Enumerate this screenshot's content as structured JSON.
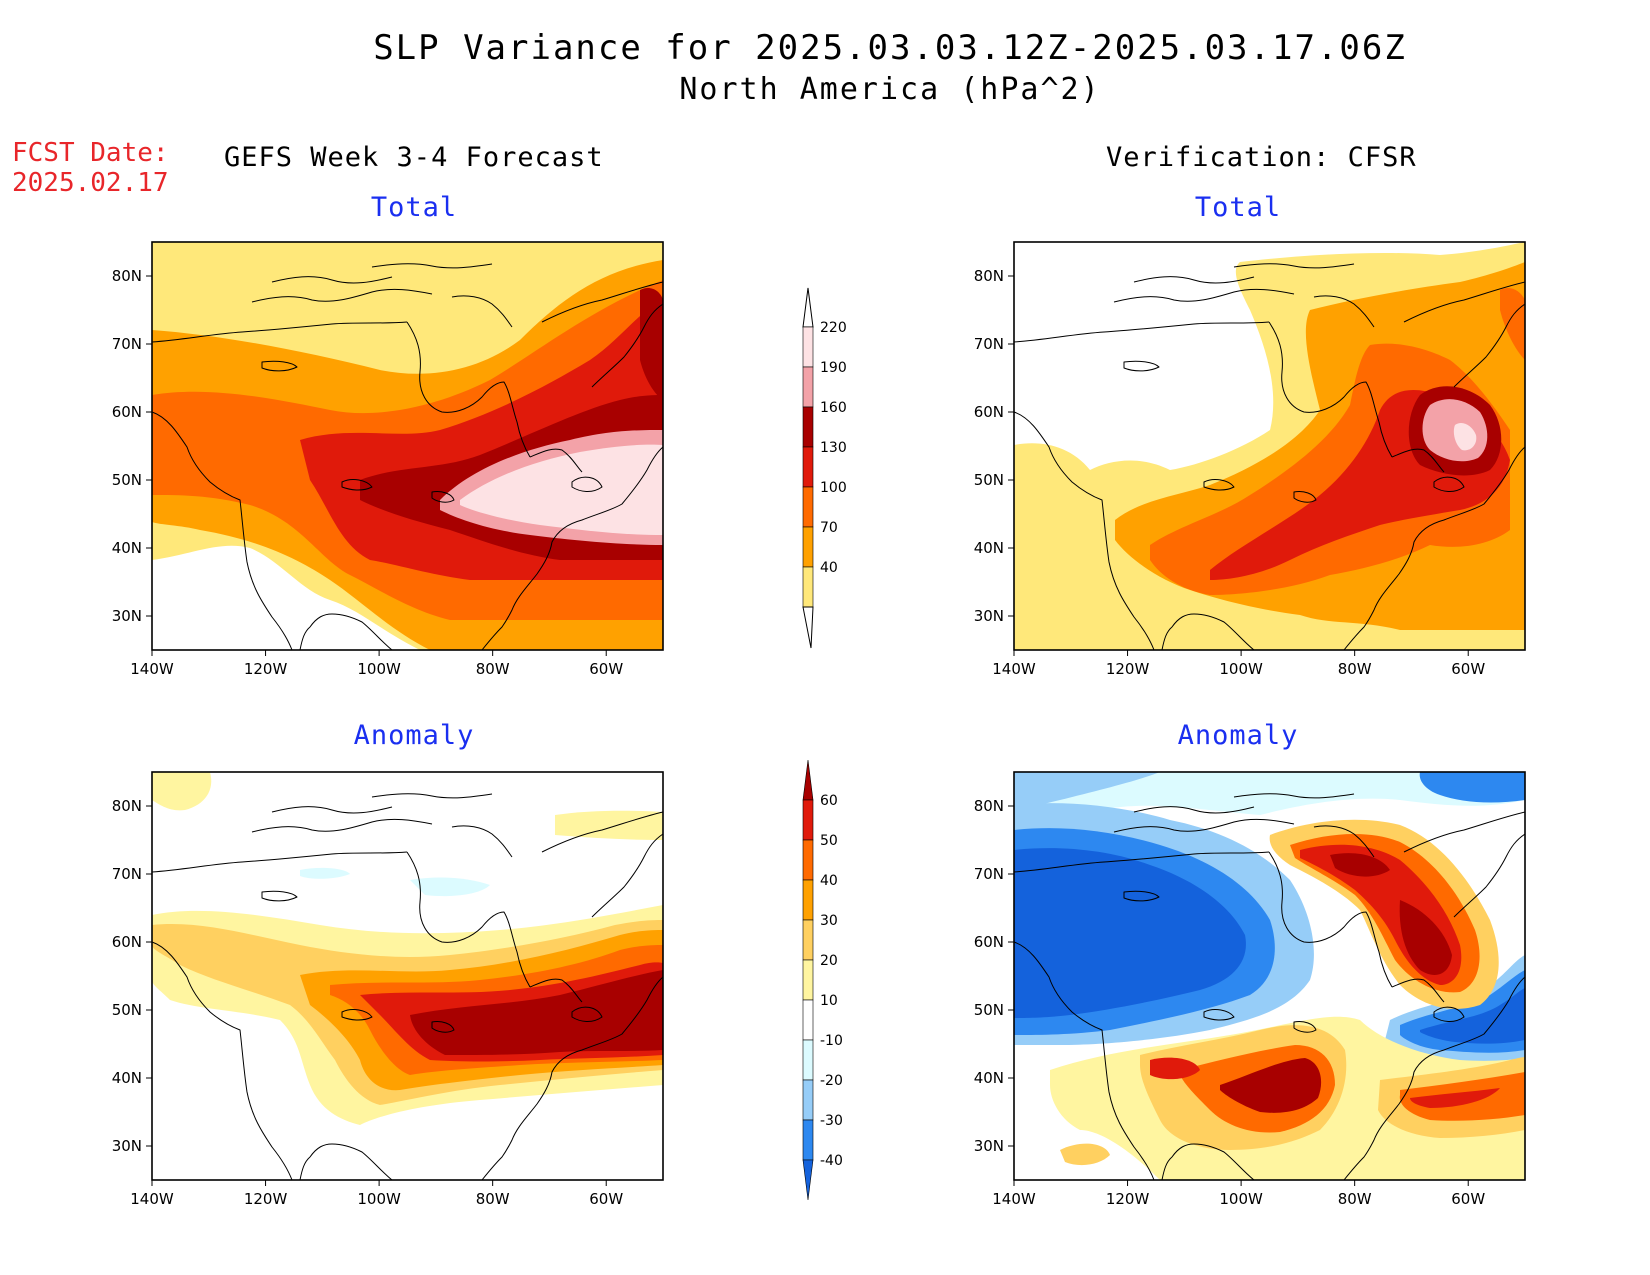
{
  "title": {
    "line1": "SLP Variance for 2025.03.03.12Z-2025.03.17.06Z",
    "line2": "North America (hPa^2)"
  },
  "forecast_date": {
    "label": "FCST Date:",
    "value": "2025.02.17"
  },
  "columns": {
    "left": "GEFS Week 3-4 Forecast",
    "right": "Verification: CFSR"
  },
  "panel_titles": {
    "total": "Total",
    "anomaly": "Anomaly"
  },
  "axes": {
    "x_ticks": [
      "140W",
      "120W",
      "100W",
      "80W",
      "60W"
    ],
    "y_ticks": [
      "80N",
      "70N",
      "60N",
      "50N",
      "40N",
      "30N"
    ]
  },
  "colorbars": {
    "total": {
      "levels": [
        "40",
        "70",
        "100",
        "130",
        "160",
        "190",
        "220"
      ],
      "colors": [
        "#ffffff",
        "#ffe87a",
        "#ffa100",
        "#ff6a00",
        "#e01a0b",
        "#a80000",
        "#f3a2a8",
        "#fde2e4"
      ]
    },
    "anomaly": {
      "levels": [
        "-40",
        "-30",
        "-20",
        "-10",
        "10",
        "20",
        "30",
        "40",
        "50",
        "60"
      ],
      "colors": [
        "#1462dc",
        "#2d88f0",
        "#96cdf8",
        "#dcfbff",
        "#ffffff",
        "#fff5a0",
        "#ffd060",
        "#ffa100",
        "#ff6a00",
        "#e01a0b",
        "#a80000"
      ]
    }
  },
  "map_data": {
    "region": "North America",
    "lon_range": [
      "140W",
      "50W"
    ],
    "lat_range": [
      "25N",
      "85N"
    ],
    "panels": [
      {
        "column": "GEFS Week 3-4 Forecast",
        "field": "Total"
      },
      {
        "column": "Verification: CFSR",
        "field": "Total"
      },
      {
        "column": "GEFS Week 3-4 Forecast",
        "field": "Anomaly"
      },
      {
        "column": "Verification: CFSR",
        "field": "Anomaly"
      }
    ]
  }
}
